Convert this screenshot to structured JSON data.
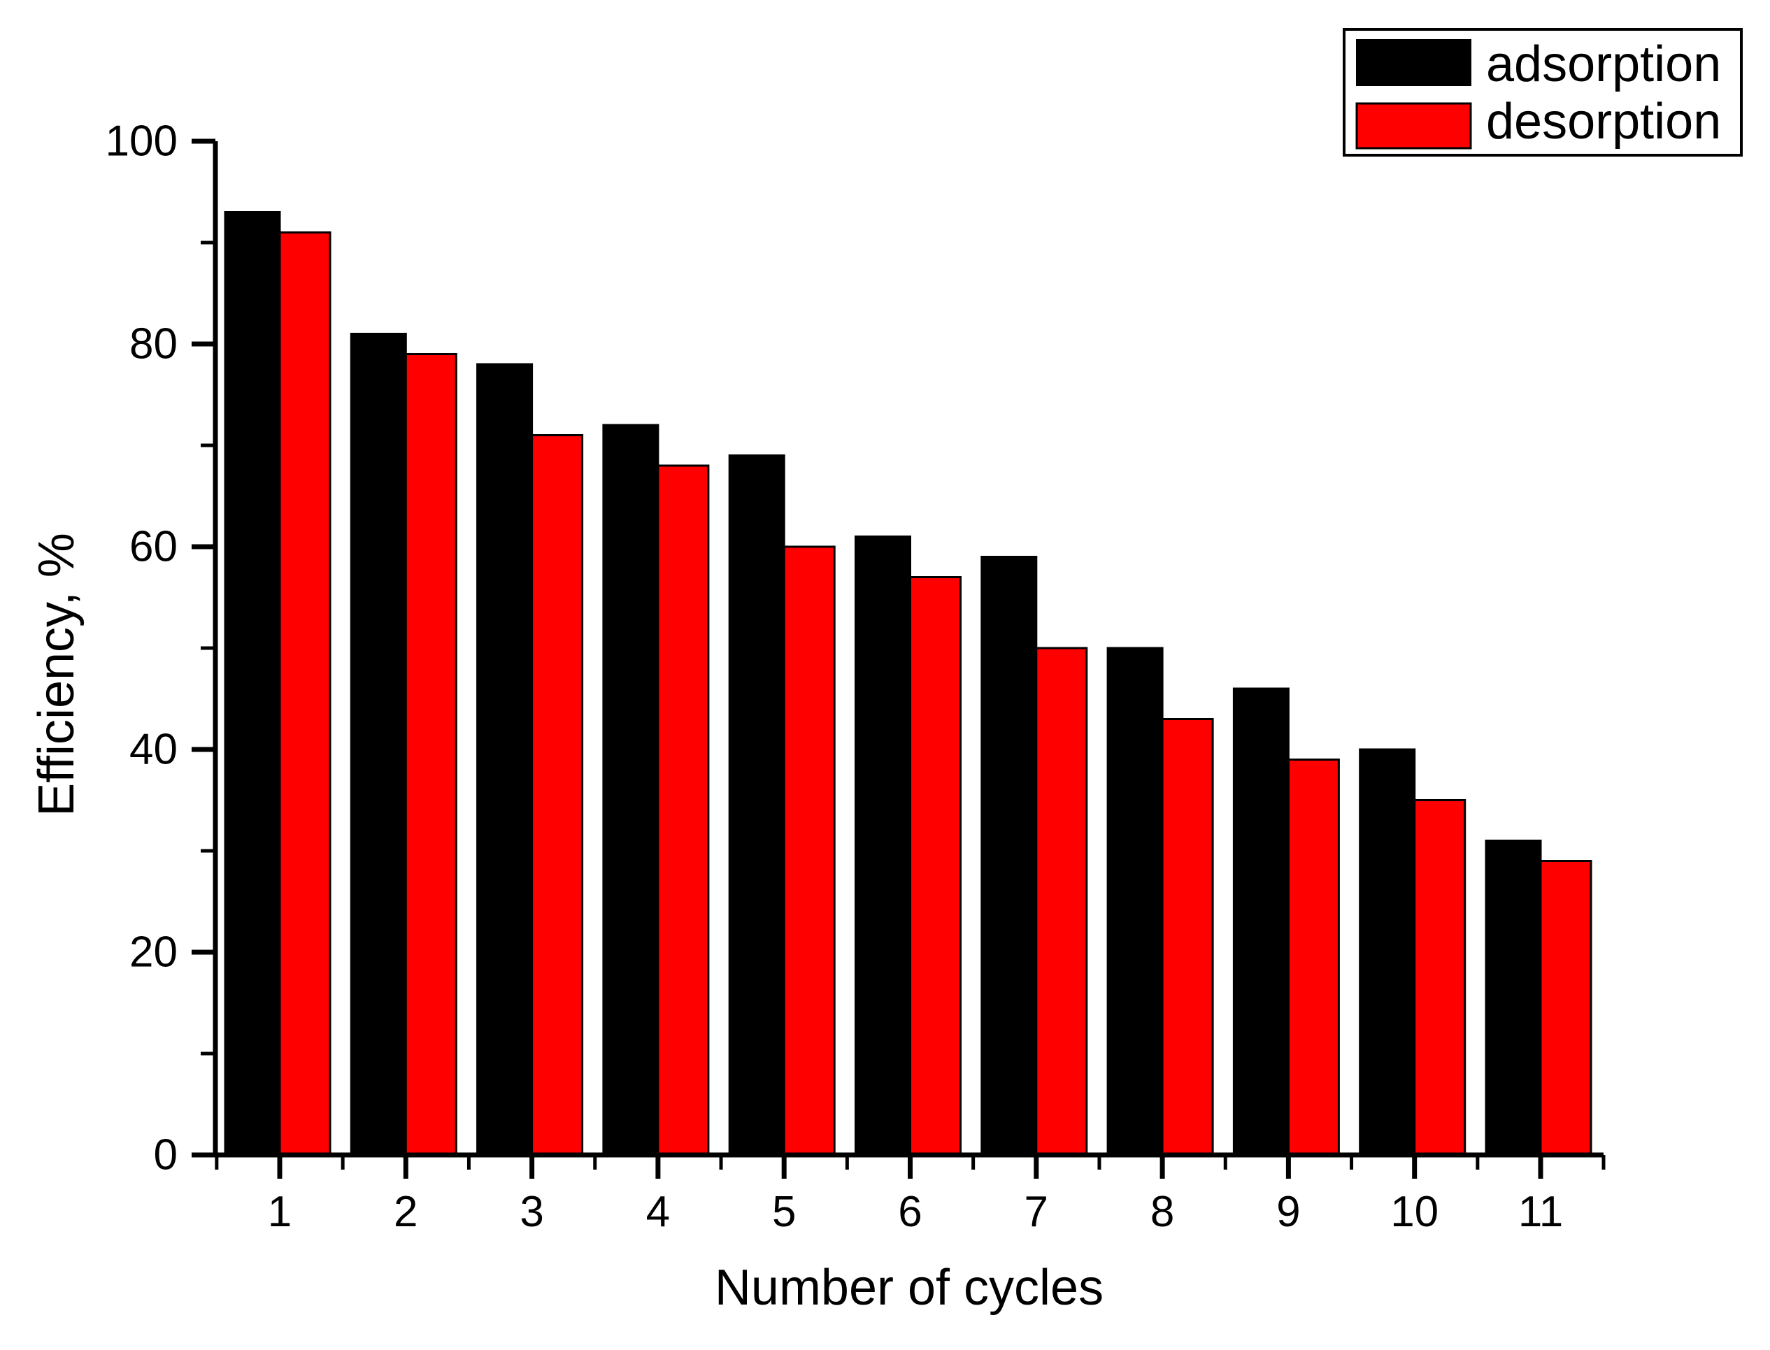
{
  "chart_data": {
    "type": "bar",
    "title": "",
    "xlabel": "Number of cycles",
    "ylabel": "Efficiency, %",
    "categories": [
      "1",
      "2",
      "3",
      "4",
      "5",
      "6",
      "7",
      "8",
      "9",
      "10",
      "11"
    ],
    "series": [
      {
        "name": "adsorption",
        "color": "#000000",
        "values": [
          93,
          81,
          78,
          72,
          69,
          61,
          59,
          50,
          46,
          40,
          31
        ]
      },
      {
        "name": "desorption",
        "color": "#FF0000",
        "values": [
          91,
          79,
          71,
          68,
          60,
          57,
          50,
          43,
          39,
          35,
          29
        ]
      }
    ],
    "ylim": [
      0,
      100
    ],
    "y_major_ticks": [
      0,
      20,
      40,
      60,
      80,
      100
    ],
    "y_minor_ticks": [
      10,
      30,
      50,
      70,
      90
    ],
    "grid": false,
    "legend_position": "top-right",
    "axis_color": "#000000",
    "background_color": "#ffffff"
  },
  "legend": {
    "items": [
      {
        "label": "adsorption",
        "color": "#000000"
      },
      {
        "label": "desorption",
        "color": "#FF0000"
      }
    ]
  }
}
